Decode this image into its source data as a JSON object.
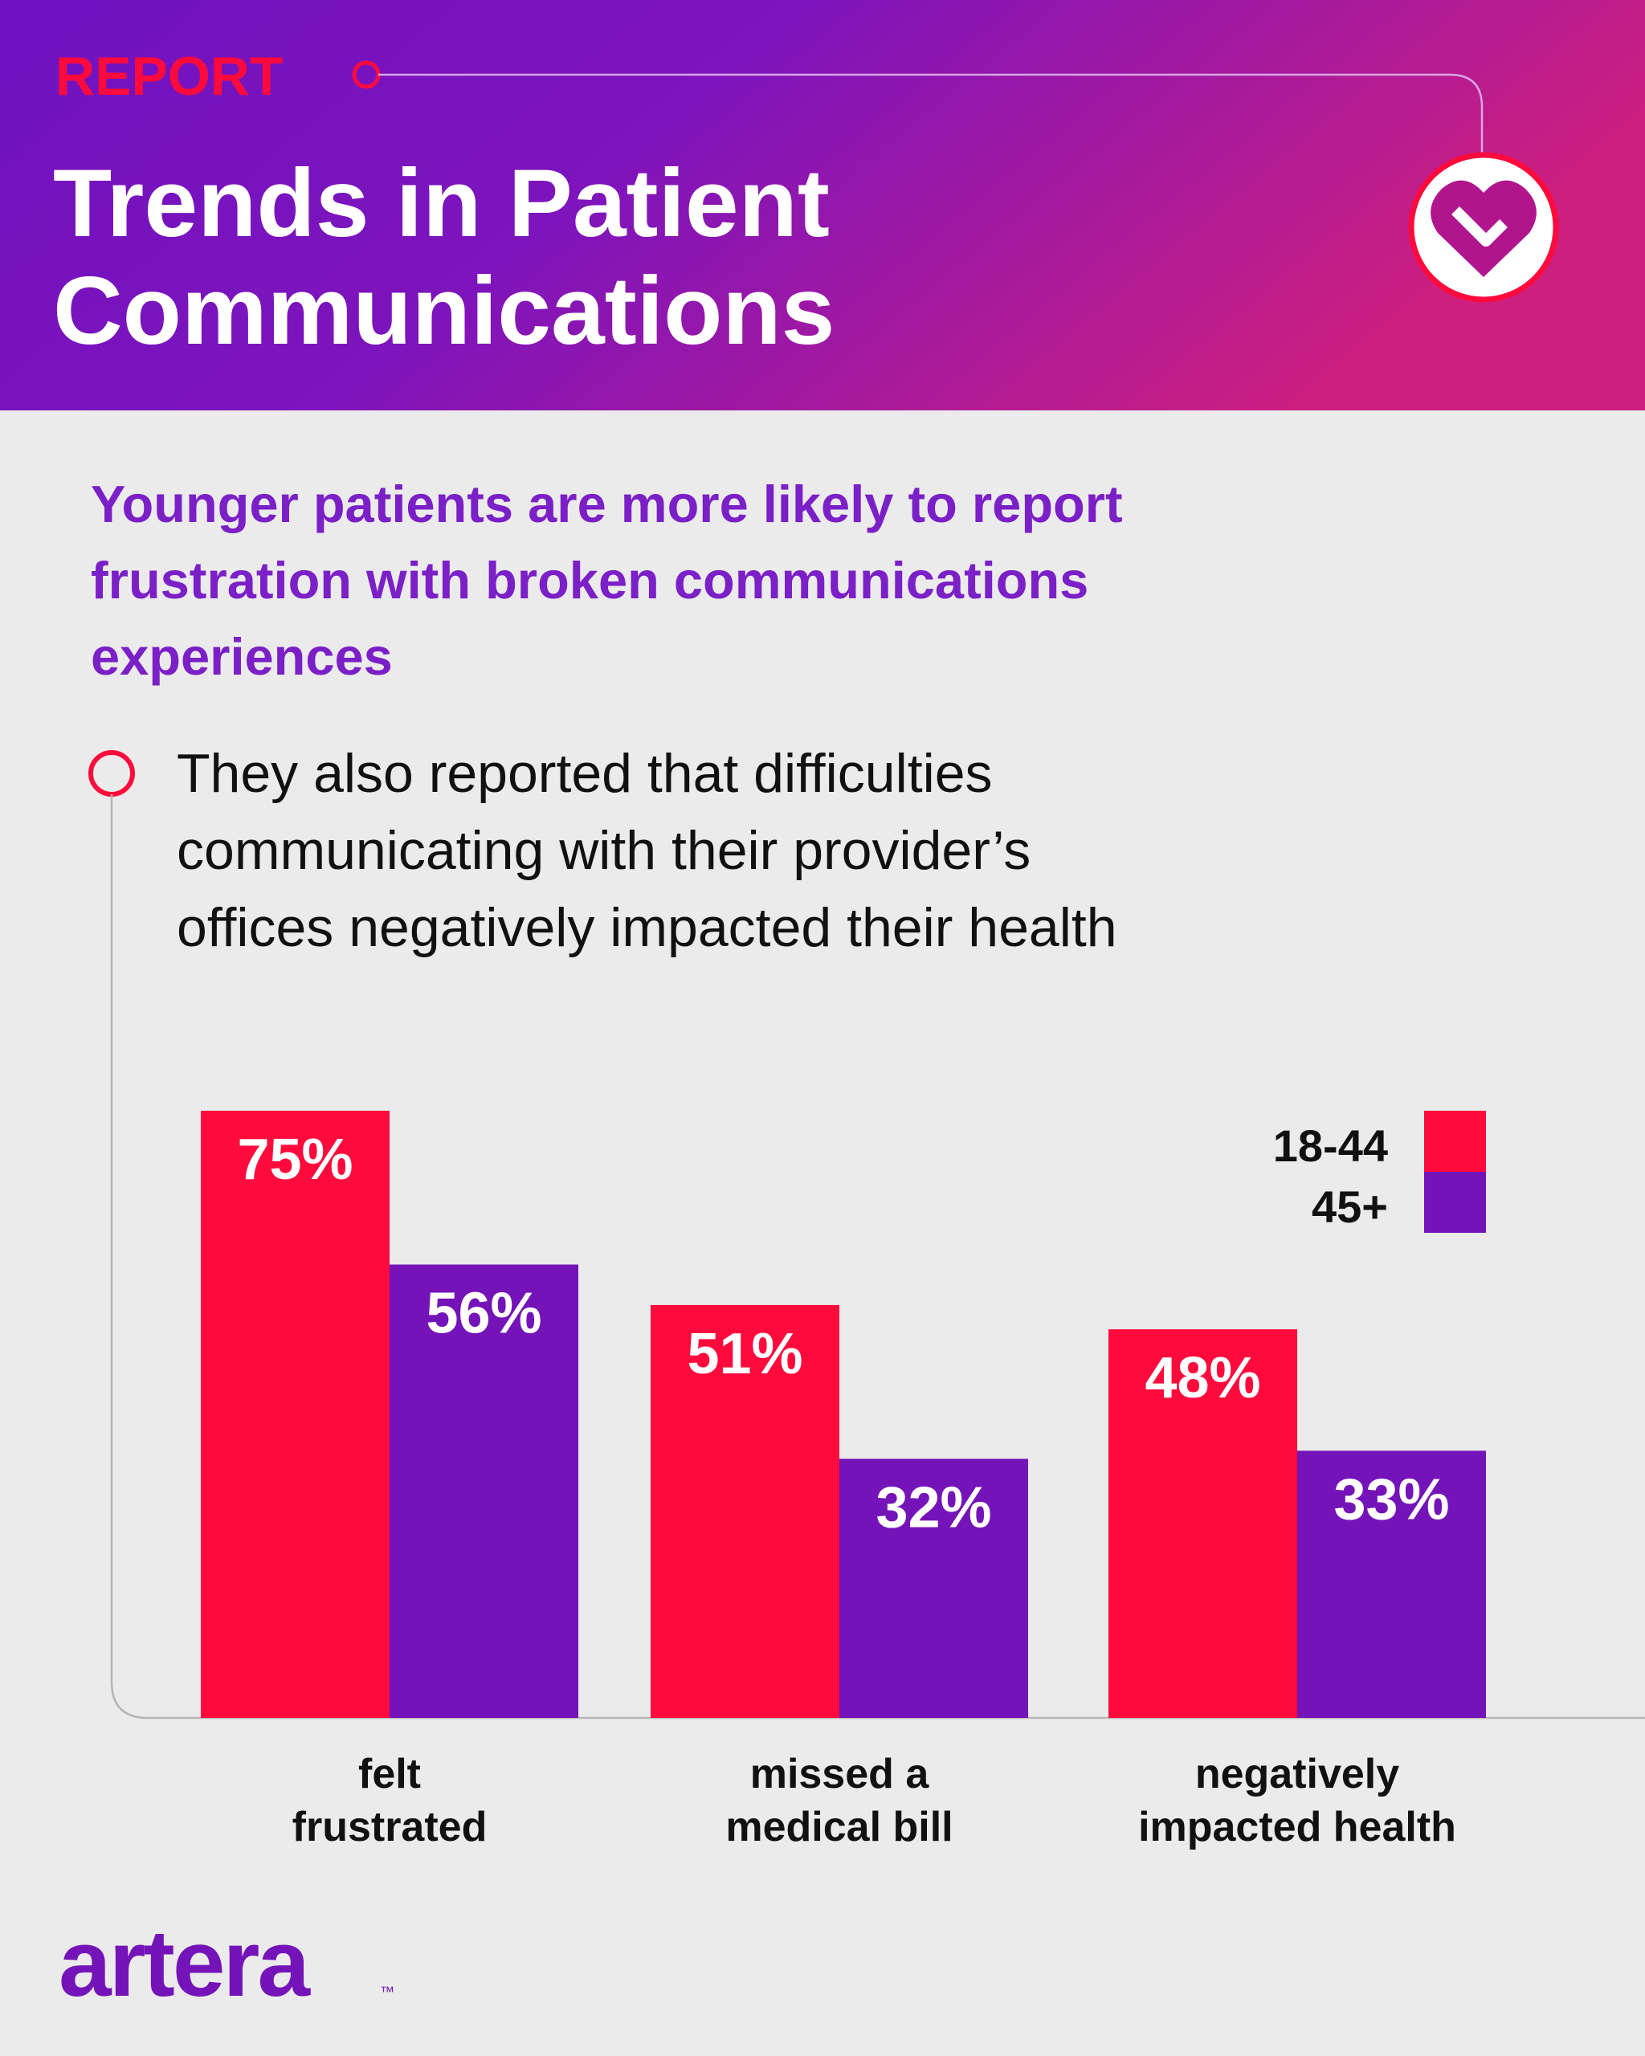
{
  "header": {
    "tag": "REPORT",
    "title": "Trends in Patient\nCommunications"
  },
  "subtitle": "Younger patients are more likely to report\nfrustration with broken communications\nexperiences",
  "note": "They also reported that difficulties\ncommunicating with their provider’s\noffices negatively impacted their health",
  "chart_data": {
    "type": "bar",
    "categories": [
      "felt\nfrustrated",
      "missed a\nmedical bill",
      "negatively\nimpacted health"
    ],
    "series": [
      {
        "name": "18-44",
        "color": "#ff0a3c",
        "values": [
          75,
          51,
          48
        ],
        "value_labels": [
          "75%",
          "51%",
          "48%"
        ]
      },
      {
        "name": "45+",
        "color": "#7414b8",
        "values": [
          56,
          32,
          33
        ],
        "value_labels": [
          "56%",
          "32%",
          "33%"
        ]
      }
    ]
  },
  "logo": {
    "name": "artera",
    "mark": "™"
  }
}
